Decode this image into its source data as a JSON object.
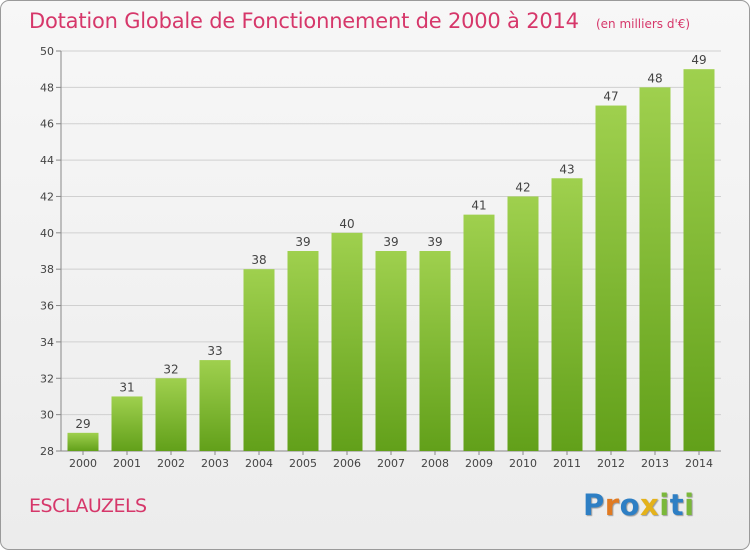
{
  "header": {
    "title": "Dotation Globale de Fonctionnement de 2000 à 2014",
    "subtitle": "(en milliers d'€)"
  },
  "footer": {
    "commune": "ESCLAUZELS",
    "logo_text": "Proxiti",
    "logo_letters": [
      {
        "ch": "P",
        "color": "#2e7fc4"
      },
      {
        "ch": "r",
        "color": "#e07a22"
      },
      {
        "ch": "o",
        "color": "#2e7fc4"
      },
      {
        "ch": "x",
        "color": "#e4b21b"
      },
      {
        "ch": "i",
        "color": "#7ab83a"
      },
      {
        "ch": "t",
        "color": "#2e7fc4"
      },
      {
        "ch": "i",
        "color": "#7ab83a"
      }
    ]
  },
  "chart_data": {
    "type": "bar",
    "title": "Dotation Globale de Fonctionnement de 2000 à 2014",
    "subtitle": "(en milliers d'€)",
    "categories": [
      "2000",
      "2001",
      "2002",
      "2003",
      "2004",
      "2005",
      "2006",
      "2007",
      "2008",
      "2009",
      "2010",
      "2011",
      "2012",
      "2013",
      "2014"
    ],
    "values": [
      29,
      31,
      32,
      33,
      38,
      39,
      40,
      39,
      39,
      41,
      42,
      43,
      47,
      48,
      49
    ],
    "ylim": [
      28,
      50
    ],
    "yticks": [
      28,
      30,
      32,
      34,
      36,
      38,
      40,
      42,
      44,
      46,
      48,
      50
    ],
    "grid": true,
    "legend": "none",
    "colors": {
      "bar_light": "#9fd04e",
      "bar_dark": "#62a01a",
      "title": "#d6376a",
      "grid": "#d0d0d0",
      "axis_text": "#444444"
    }
  }
}
